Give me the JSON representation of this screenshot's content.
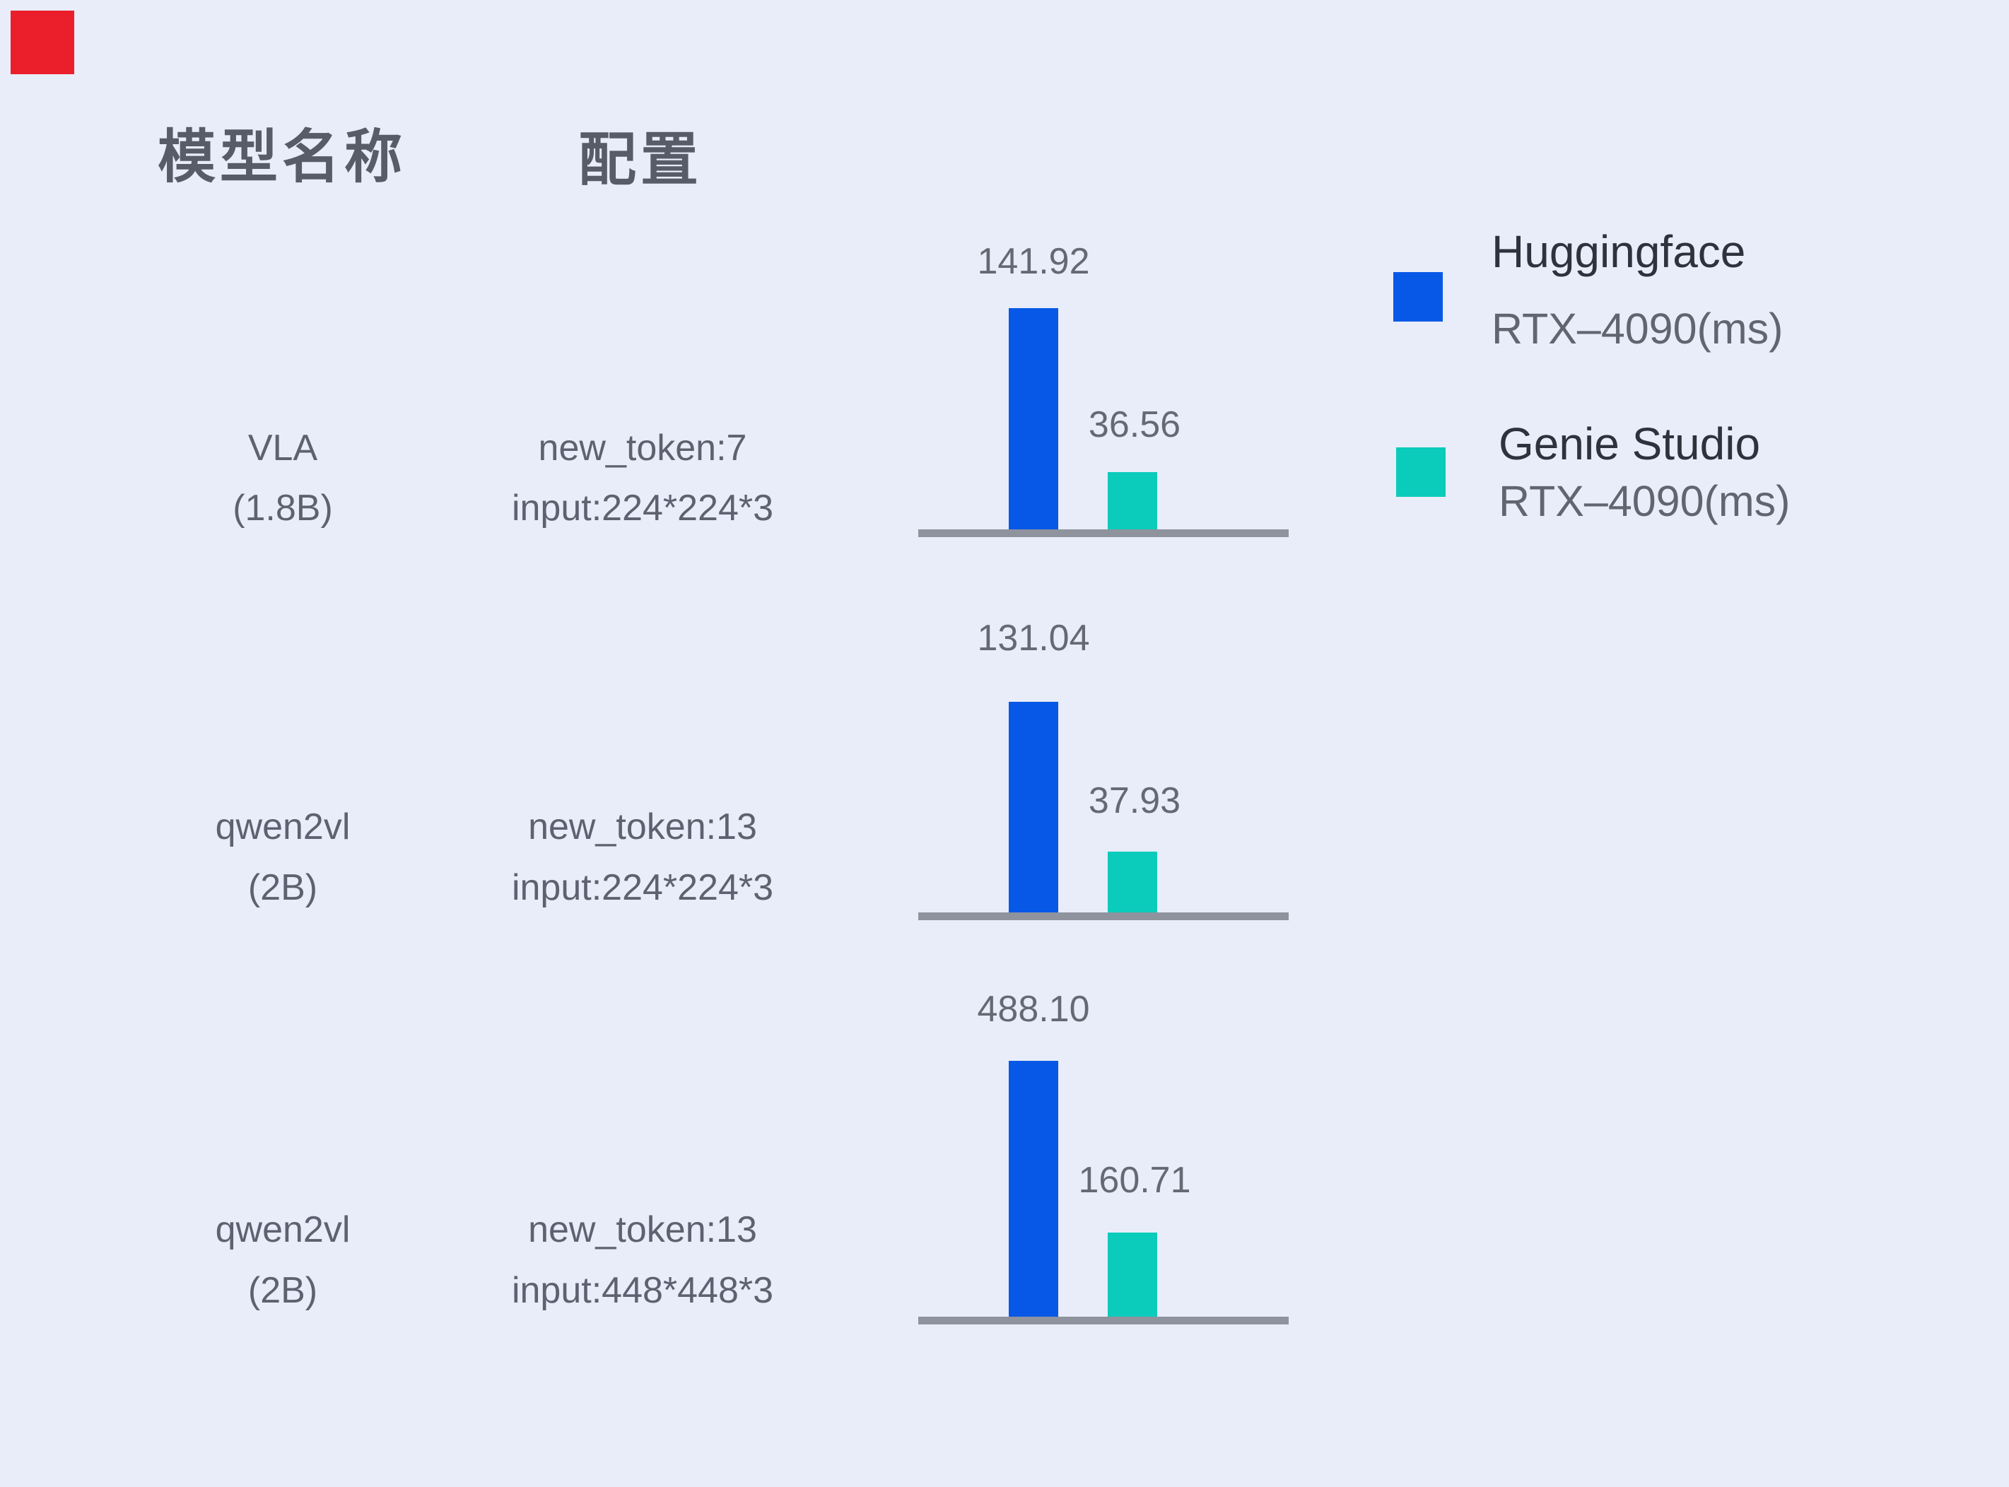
{
  "page": {
    "background": "#E8EDF9",
    "accent_red": "#EA1F2B",
    "axis_color": "#8E939E",
    "header_text_color": "#565C68",
    "body_text_color": "#5C6270"
  },
  "header": {
    "model_column": "模型名称",
    "config_column": "配置"
  },
  "legend": {
    "items": [
      {
        "name": "Huggingface",
        "device": "RTX–4090(ms)",
        "color": "#0758E6"
      },
      {
        "name": "Genie Studio",
        "device": "RTX–4090(ms)",
        "color": "#0BCBBB"
      }
    ]
  },
  "rows": [
    {
      "model_line1": "VLA",
      "model_line2": "(1.8B)",
      "config_line1": "new_token:7",
      "config_line2": "input:224*224*3",
      "hf_label": "141.92",
      "gs_label": "36.56"
    },
    {
      "model_line1": "qwen2vl",
      "model_line2": "(2B)",
      "config_line1": "new_token:13",
      "config_line2": "input:224*224*3",
      "hf_label": "131.04",
      "gs_label": "37.93"
    },
    {
      "model_line1": "qwen2vl",
      "model_line2": "(2B)",
      "config_line1": "new_token:13",
      "config_line2": "input:448*448*3",
      "hf_label": "488.10",
      "gs_label": "160.71"
    }
  ],
  "chart_data": {
    "type": "bar",
    "unit": "ms",
    "title": "",
    "xlabel": "",
    "ylabel": "",
    "grid": false,
    "legend_position": "right",
    "value_labels": true,
    "axes": "horizontal baseline per group, no ticks, independent scale per group",
    "series": [
      {
        "name": "Huggingface RTX-4090(ms)",
        "color": "#0758E6"
      },
      {
        "name": "Genie Studio RTX-4090(ms)",
        "color": "#0BCBBB"
      }
    ],
    "groups": [
      {
        "model": "VLA (1.8B)",
        "config": "new_token:7 input:224*224*3",
        "values": [
          141.92,
          36.56
        ]
      },
      {
        "model": "qwen2vl (2B)",
        "config": "new_token:13 input:224*224*3",
        "values": [
          131.04,
          37.93
        ]
      },
      {
        "model": "qwen2vl (2B)",
        "config": "new_token:13 input:448*448*3",
        "values": [
          488.1,
          160.71
        ]
      }
    ]
  }
}
